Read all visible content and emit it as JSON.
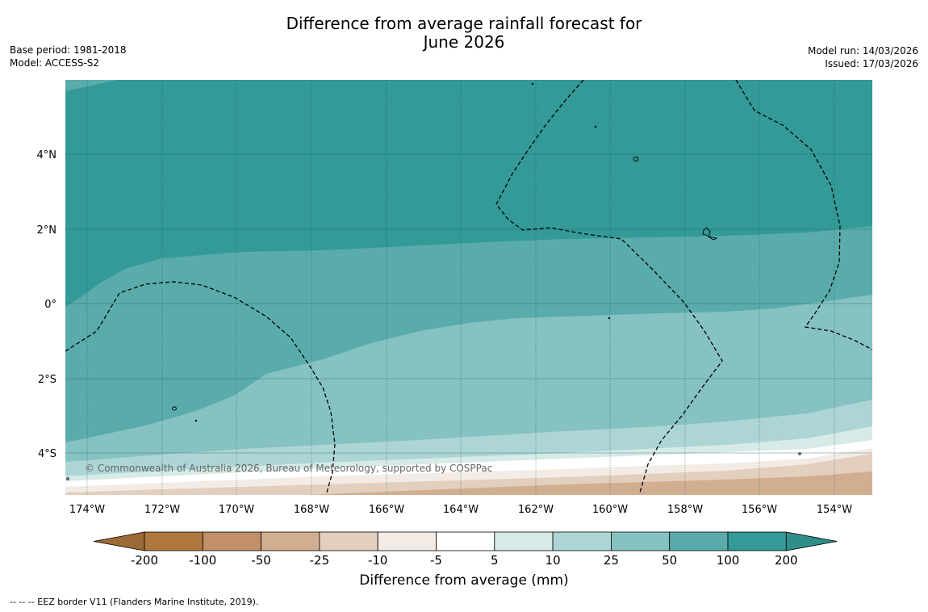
{
  "title": {
    "line1": "Difference from average rainfall forecast for",
    "line2": "June 2026"
  },
  "meta": {
    "base_period": "Base period: 1981-2018",
    "model": "Model: ACCESS-S2",
    "model_run": "Model run: 14/03/2026",
    "issued": "Issued: 17/03/2026"
  },
  "map": {
    "copyright": "© Commonwealth of Australia 2026, Bureau of Meteorology, supported by COSPPac",
    "lat_labels": [
      "4°N",
      "2°N",
      "0°",
      "2°S",
      "4°S"
    ],
    "lon_labels": [
      "174°W",
      "172°W",
      "170°W",
      "168°W",
      "166°W",
      "164°W",
      "162°W",
      "160°W",
      "158°W",
      "156°W",
      "154°W"
    ],
    "lat_range": [
      -5.1,
      5.9
    ],
    "lon_range": [
      -174.6,
      -153.0
    ],
    "field_colors": {
      "over_200": "#339a98",
      "100_200": "#339a98",
      "50_100": "#5aabab",
      "25_50": "#85c2c1",
      "10_25": "#aed5d5",
      "5_10": "#d6eae8",
      "neutral": "#ffffff",
      "neg_5_10": "#f3ebe5",
      "neg_10_25": "#e3cfbe",
      "neg_25_50": "#d2ae91"
    }
  },
  "colorbar": {
    "label": "Difference from average (mm)",
    "ticks": [
      "-200",
      "-100",
      "-50",
      "-25",
      "-10",
      "-5",
      "5",
      "10",
      "25",
      "50",
      "100",
      "200"
    ],
    "colors": [
      "#9c6a36",
      "#b0773e",
      "#c18f68",
      "#d2ae91",
      "#e3cfbe",
      "#f3ebe5",
      "#ffffff",
      "#d6eae8",
      "#aed5d5",
      "#85c2c1",
      "#5aabab",
      "#339a98",
      "#2f8d8a"
    ]
  },
  "footer": {
    "eez_note": "--  --  -- EEZ border V11 (Flanders Marine Institute, 2019)."
  }
}
